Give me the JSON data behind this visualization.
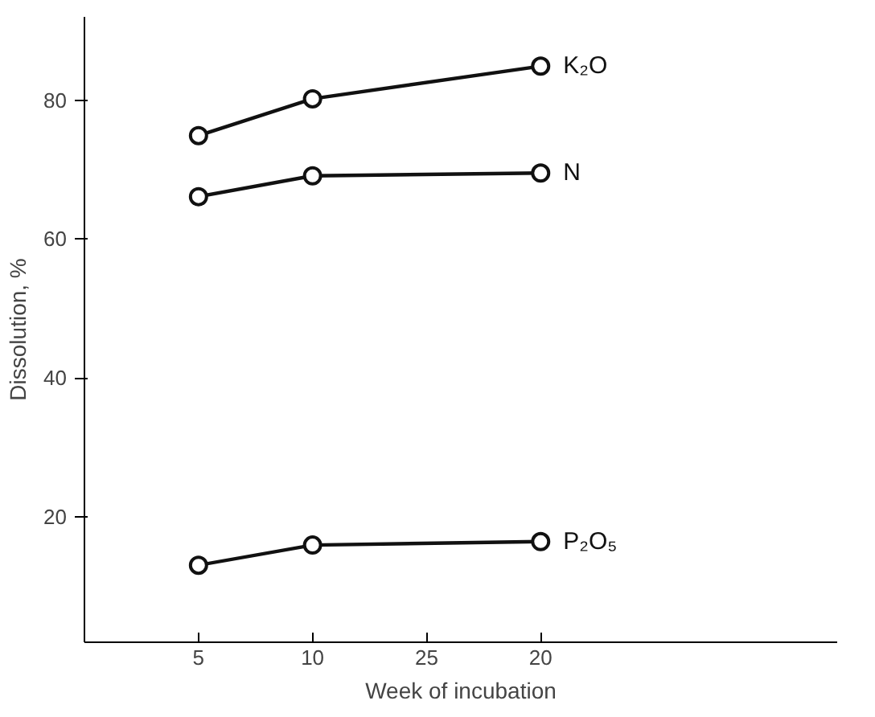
{
  "chart_data": {
    "type": "line",
    "xlabel": "Week of incubation",
    "ylabel": "Dissolution, %",
    "categories": [
      "5",
      "10",
      "25",
      "20"
    ],
    "ylim": [
      1.9,
      92
    ],
    "yticks": [
      20,
      40,
      60,
      80
    ],
    "grid": false,
    "legend": false,
    "marker": "circle",
    "line_style": "solid",
    "series": [
      {
        "name": "K₂O",
        "color": "#111111",
        "x": [
          "5",
          "10",
          "20"
        ],
        "values": [
          74.9,
          80.2,
          84.9
        ]
      },
      {
        "name": "N",
        "color": "#111111",
        "x": [
          "5",
          "10",
          "20"
        ],
        "values": [
          66.1,
          69.1,
          69.5
        ]
      },
      {
        "name": "P₂O₅",
        "color": "#111111",
        "x": [
          "5",
          "10",
          "20"
        ],
        "values": [
          13.0,
          15.9,
          16.4
        ]
      }
    ]
  }
}
